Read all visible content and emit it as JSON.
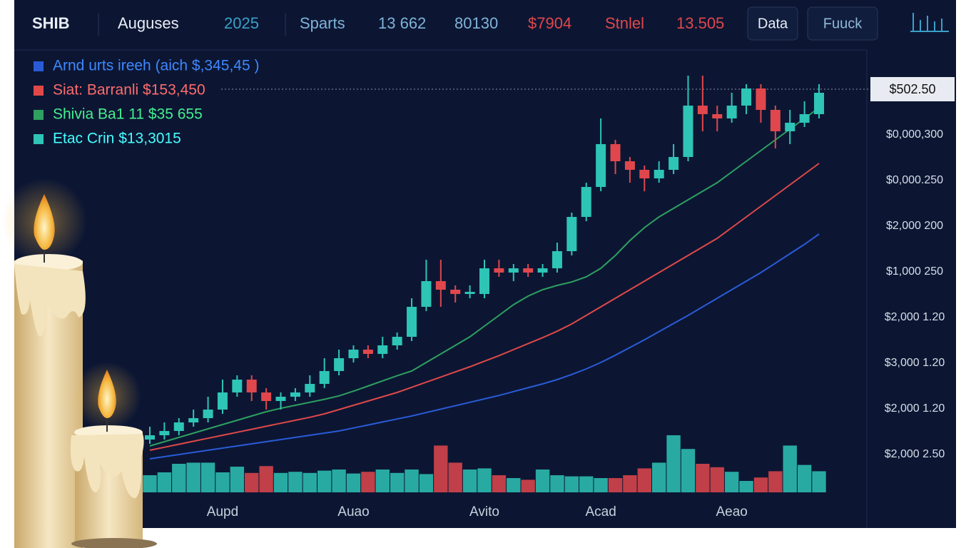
{
  "toolbar": {
    "symbol": "SHIB",
    "period": "Auguses",
    "year": "2025",
    "items": [
      "Sparts",
      "13 662",
      "80130",
      "$7904",
      "Stnlel",
      "13.505"
    ],
    "buttons": [
      "Data",
      "Fuuck"
    ]
  },
  "price_tag": "$502.50",
  "price_axis_labels": [
    "$0,000,300",
    "$0,000.250",
    "$2,000 200",
    "$1,000 250",
    "$2,000 1.20",
    "$3,000 1.20",
    "$2,000 1.20",
    "$2,000 2.50"
  ],
  "chart_data": {
    "type": "candlestick",
    "categories": [
      null,
      null,
      null,
      null,
      null,
      "Aupd",
      null,
      null,
      null,
      null,
      null,
      null,
      null,
      null,
      "Auao",
      null,
      null,
      null,
      null,
      null,
      null,
      null,
      null,
      "Avito",
      null,
      null,
      null,
      null,
      null,
      null,
      null,
      "Acad",
      null,
      null,
      null,
      null,
      null,
      null,
      null,
      null,
      "Aeao",
      null,
      null,
      null,
      null,
      null,
      null
    ],
    "name": "Etac Crin $13,3015",
    "up_color": "#2ec4b6",
    "down_color": "#e0474c",
    "open": [
      14,
      15,
      16,
      18,
      19,
      21,
      25,
      28,
      25,
      23,
      24,
      25,
      27,
      30,
      33,
      35,
      34,
      36,
      38,
      45,
      51,
      49,
      48,
      48,
      54,
      53,
      54,
      53,
      54,
      58,
      66,
      73,
      83,
      79,
      77,
      75,
      77,
      80,
      92,
      90,
      89,
      92,
      96,
      91,
      86,
      88,
      90
    ],
    "close": [
      15,
      16,
      18,
      19,
      21,
      25,
      28,
      25,
      23,
      24,
      25,
      27,
      30,
      33,
      35,
      34,
      36,
      38,
      45,
      51,
      49,
      48,
      48.5,
      54,
      53,
      54,
      53,
      54,
      58,
      66,
      73,
      83,
      79,
      77,
      75,
      77,
      80,
      92,
      90,
      89,
      92,
      96,
      91,
      86,
      88,
      90,
      95
    ],
    "high": [
      17,
      18,
      19,
      21,
      24,
      28,
      29,
      29,
      26,
      25,
      26,
      29,
      33,
      35,
      36,
      36,
      38,
      39,
      47,
      56,
      56,
      50,
      50,
      56,
      56,
      55,
      55,
      55,
      60,
      67,
      74,
      89,
      84,
      80,
      78,
      79,
      83,
      99,
      99,
      92,
      95,
      97,
      97,
      92,
      91,
      93,
      97
    ],
    "low": [
      13,
      14,
      15,
      17,
      18,
      20,
      24,
      23,
      21,
      21,
      23,
      24,
      26,
      29,
      32,
      33,
      33,
      35,
      37,
      44,
      45,
      46,
      47,
      47,
      52,
      51,
      52,
      52,
      53,
      57,
      65,
      72,
      76,
      74,
      72,
      74,
      76,
      79,
      86,
      86,
      88,
      90,
      88,
      82,
      83,
      87,
      89
    ],
    "volume": [
      30,
      35,
      50,
      52,
      52,
      35,
      45,
      34,
      46,
      34,
      36,
      34,
      38,
      40,
      33,
      36,
      40,
      34,
      40,
      32,
      82,
      52,
      40,
      42,
      30,
      25,
      22,
      40,
      30,
      28,
      28,
      25,
      25,
      30,
      42,
      52,
      100,
      76,
      50,
      44,
      36,
      20,
      26,
      37,
      82,
      48,
      37
    ],
    "series": [
      {
        "name": "Arnd urts ireeh (aich $,345,45 )",
        "color": "#2a5bd7",
        "values": [
          9.5,
          10,
          10.5,
          11,
          11.5,
          12,
          12.5,
          13,
          13.5,
          14,
          14.5,
          15,
          15.5,
          16,
          16.7,
          17.4,
          18.1,
          18.8,
          19.5,
          20.3,
          21.1,
          21.9,
          22.7,
          23.5,
          24.3,
          25.2,
          26.1,
          27,
          28,
          29.2,
          30.5,
          32,
          33.7,
          35.5,
          37.3,
          39.2,
          41.1,
          43,
          45,
          47,
          49,
          51,
          53,
          55.2,
          57.4,
          59.6,
          62
        ]
      },
      {
        "name": "Siat: Barranli $153,450",
        "color": "#e04848",
        "values": [
          11.5,
          12.2,
          12.9,
          13.6,
          14.3,
          15,
          15.7,
          16.4,
          17.1,
          17.8,
          18.5,
          19.2,
          20,
          21,
          22,
          23,
          24,
          25,
          26.2,
          27.4,
          28.6,
          29.8,
          31,
          32.3,
          33.6,
          35,
          36.4,
          37.8,
          39.3,
          41,
          43,
          45,
          47,
          49,
          51,
          53,
          55,
          57,
          59,
          61,
          63.5,
          66,
          68.5,
          71,
          73.5,
          76,
          78.5
        ]
      },
      {
        "name": "Shivia Ba1 11 $35 655",
        "color": "#2ea060",
        "values": [
          12.5,
          13.5,
          14.5,
          15.5,
          16.5,
          17.5,
          18.5,
          19.5,
          20.5,
          21.3,
          22,
          22.7,
          23.4,
          24.2,
          25.3,
          26.5,
          27.7,
          28.9,
          30,
          32,
          34,
          36,
          38,
          40.5,
          43,
          45.5,
          47.5,
          49,
          50,
          50.8,
          52,
          54,
          57,
          60.5,
          63.5,
          66,
          68,
          70,
          72,
          74,
          76.5,
          79,
          81.5,
          84,
          86.5,
          89,
          91.5
        ]
      }
    ],
    "ylim": [
      0,
      100
    ],
    "volume_lim": [
      0,
      100
    ]
  }
}
